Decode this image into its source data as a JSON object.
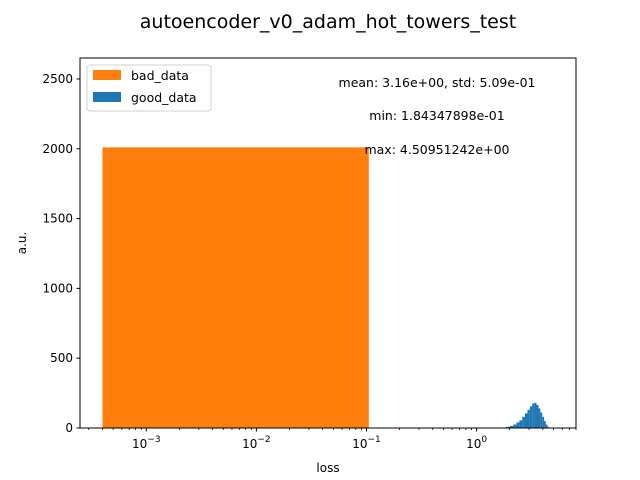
{
  "chart_data": {
    "type": "bar",
    "title": "autoencoder_v0_adam_hot_towers_test",
    "xlabel": "loss",
    "ylabel": "a.u.",
    "xscale": "log",
    "xlim": [
      0.00025,
      8.0
    ],
    "ylim": [
      0,
      2650
    ],
    "grid": false,
    "legend": {
      "placement": "top-left",
      "entries": [
        "bad_data",
        "good_data"
      ]
    },
    "x_ticks": [
      {
        "value": 0.001,
        "base": "10",
        "exp": "−3"
      },
      {
        "value": 0.01,
        "base": "10",
        "exp": "−2"
      },
      {
        "value": 0.1,
        "base": "10",
        "exp": "−1"
      },
      {
        "value": 1,
        "base": "10",
        "exp": "0"
      }
    ],
    "y_ticks": [
      0,
      500,
      1000,
      1500,
      2000,
      2500
    ],
    "annotations": [
      "mean: 3.16e+00, std: 5.09e-01",
      "min: 1.84347898e-01",
      "max: 4.50951242e+00"
    ],
    "series": [
      {
        "name": "bad_data",
        "color": "#ff7f0e",
        "bins": [
          {
            "x0": 0.0004,
            "x1": 0.105,
            "value": 2010
          }
        ]
      },
      {
        "name": "good_data",
        "color": "#1f77b4",
        "bins": [
          {
            "x0": 1.85,
            "x1": 2.0,
            "value": 8
          },
          {
            "x0": 2.0,
            "x1": 2.15,
            "value": 15
          },
          {
            "x0": 2.15,
            "x1": 2.3,
            "value": 25
          },
          {
            "x0": 2.3,
            "x1": 2.45,
            "value": 40
          },
          {
            "x0": 2.45,
            "x1": 2.6,
            "value": 55
          },
          {
            "x0": 2.6,
            "x1": 2.75,
            "value": 80
          },
          {
            "x0": 2.75,
            "x1": 2.9,
            "value": 105
          },
          {
            "x0": 2.9,
            "x1": 3.05,
            "value": 130
          },
          {
            "x0": 3.05,
            "x1": 3.2,
            "value": 155
          },
          {
            "x0": 3.2,
            "x1": 3.35,
            "value": 175
          },
          {
            "x0": 3.35,
            "x1": 3.5,
            "value": 180
          },
          {
            "x0": 3.5,
            "x1": 3.65,
            "value": 165
          },
          {
            "x0": 3.65,
            "x1": 3.8,
            "value": 140
          },
          {
            "x0": 3.8,
            "x1": 3.95,
            "value": 110
          },
          {
            "x0": 3.95,
            "x1": 4.1,
            "value": 80
          },
          {
            "x0": 4.1,
            "x1": 4.25,
            "value": 50
          },
          {
            "x0": 4.25,
            "x1": 4.4,
            "value": 25
          },
          {
            "x0": 4.4,
            "x1": 4.51,
            "value": 10
          }
        ]
      }
    ]
  }
}
